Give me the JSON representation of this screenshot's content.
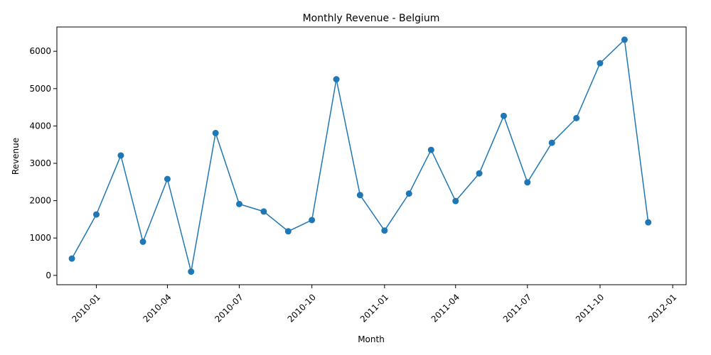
{
  "chart_data": {
    "type": "line",
    "title": "Monthly Revenue - Belgium",
    "xlabel": "Month",
    "ylabel": "Revenue",
    "x_ticks": [
      "2010-01",
      "2010-04",
      "2010-07",
      "2010-10",
      "2011-01",
      "2011-04",
      "2011-07",
      "2011-10",
      "2012-01"
    ],
    "y_ticks": [
      0,
      1000,
      2000,
      3000,
      4000,
      5000,
      6000
    ],
    "xlim": [
      "2009-11-12",
      "2012-01-18"
    ],
    "ylim": [
      -250,
      6650
    ],
    "grid": false,
    "marker": "circle",
    "series": [
      {
        "color": "#1f77b4",
        "x": [
          "2009-12-01",
          "2010-01-01",
          "2010-02-01",
          "2010-03-01",
          "2010-04-01",
          "2010-05-01",
          "2010-06-01",
          "2010-07-01",
          "2010-08-01",
          "2010-09-01",
          "2010-10-01",
          "2010-11-01",
          "2010-12-01",
          "2011-01-01",
          "2011-02-01",
          "2011-03-01",
          "2011-04-01",
          "2011-05-01",
          "2011-06-01",
          "2011-07-01",
          "2011-08-01",
          "2011-09-01",
          "2011-10-01",
          "2011-11-01",
          "2011-12-01"
        ],
        "y": [
          450,
          1630,
          3210,
          900,
          2580,
          100,
          3810,
          1910,
          1710,
          1180,
          1480,
          5250,
          2150,
          1200,
          2190,
          3360,
          1990,
          2730,
          4270,
          2490,
          3550,
          4210,
          5680,
          6310,
          1420
        ]
      }
    ]
  }
}
